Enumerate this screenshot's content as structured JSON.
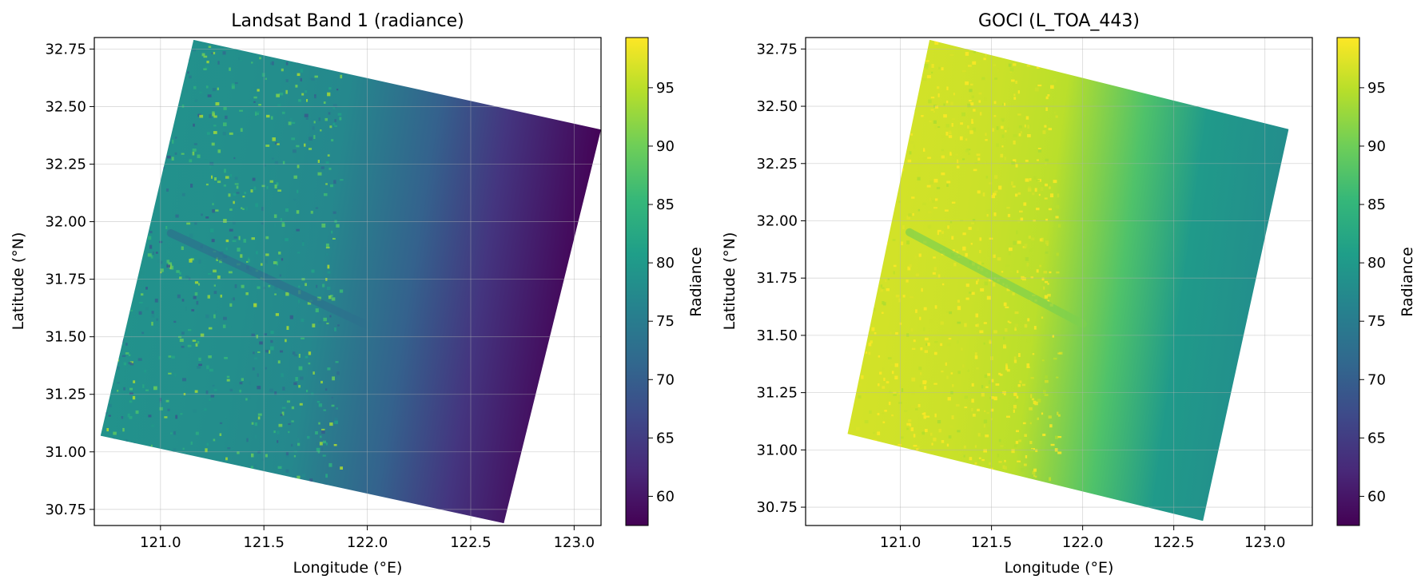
{
  "chart_data": [
    {
      "type": "heatmap",
      "title": "Landsat Band 1 (radiance)",
      "xlabel": "Longitude (°E)",
      "ylabel": "Latitude (°N)",
      "xlim": [
        120.68,
        123.13
      ],
      "ylim": [
        30.68,
        32.8
      ],
      "xticks": [
        "121.0",
        "121.5",
        "122.0",
        "122.5",
        "123.0"
      ],
      "xtick_values": [
        121.0,
        121.5,
        122.0,
        122.5,
        123.0
      ],
      "yticks": [
        "30.75",
        "31.00",
        "31.25",
        "31.50",
        "31.75",
        "32.00",
        "32.25",
        "32.50",
        "32.75"
      ],
      "ytick_values": [
        30.75,
        31.0,
        31.25,
        31.5,
        31.75,
        32.0,
        32.25,
        32.5,
        32.75
      ],
      "grid": true,
      "footprint": [
        [
          121.16,
          32.79
        ],
        [
          123.13,
          32.4
        ],
        [
          122.66,
          30.69
        ],
        [
          120.71,
          31.07
        ]
      ],
      "land_mean": 79,
      "coast_water_mean": 77,
      "open_sea_mean": 64,
      "far_east_min": 58,
      "colorbar": {
        "label": "Radiance",
        "colormap": "viridis",
        "range": [
          57.5,
          99.3
        ],
        "ticks": [
          "60",
          "65",
          "70",
          "75",
          "80",
          "85",
          "90",
          "95"
        ],
        "tick_values": [
          60,
          65,
          70,
          75,
          80,
          85,
          90,
          95
        ]
      }
    },
    {
      "type": "heatmap",
      "title": "GOCI (L_TOA_443)",
      "xlabel": "Longitude (°E)",
      "ylabel": "Latitude (°N)",
      "xlim": [
        120.48,
        123.26
      ],
      "ylim": [
        30.67,
        32.8
      ],
      "xticks": [
        "121.0",
        "121.5",
        "122.0",
        "122.5",
        "123.0"
      ],
      "xtick_values": [
        121.0,
        121.5,
        122.0,
        122.5,
        123.0
      ],
      "yticks": [
        "30.75",
        "31.00",
        "31.25",
        "31.50",
        "31.75",
        "32.00",
        "32.25",
        "32.50",
        "32.75"
      ],
      "ytick_values": [
        30.75,
        31.0,
        31.25,
        31.5,
        31.75,
        32.0,
        32.25,
        32.5,
        32.75
      ],
      "grid": true,
      "footprint": [
        [
          121.16,
          32.79
        ],
        [
          123.13,
          32.4
        ],
        [
          122.66,
          30.69
        ],
        [
          120.71,
          31.07
        ]
      ],
      "land_mean": 97,
      "coast_water_mean": 95,
      "open_sea_mean": 80,
      "far_east_min": 78,
      "colorbar": {
        "label": "Radiance",
        "colormap": "viridis",
        "range": [
          57.5,
          99.3
        ],
        "ticks": [
          "60",
          "65",
          "70",
          "75",
          "80",
          "85",
          "90",
          "95"
        ],
        "tick_values": [
          60,
          65,
          70,
          75,
          80,
          85,
          90,
          95
        ]
      }
    }
  ]
}
